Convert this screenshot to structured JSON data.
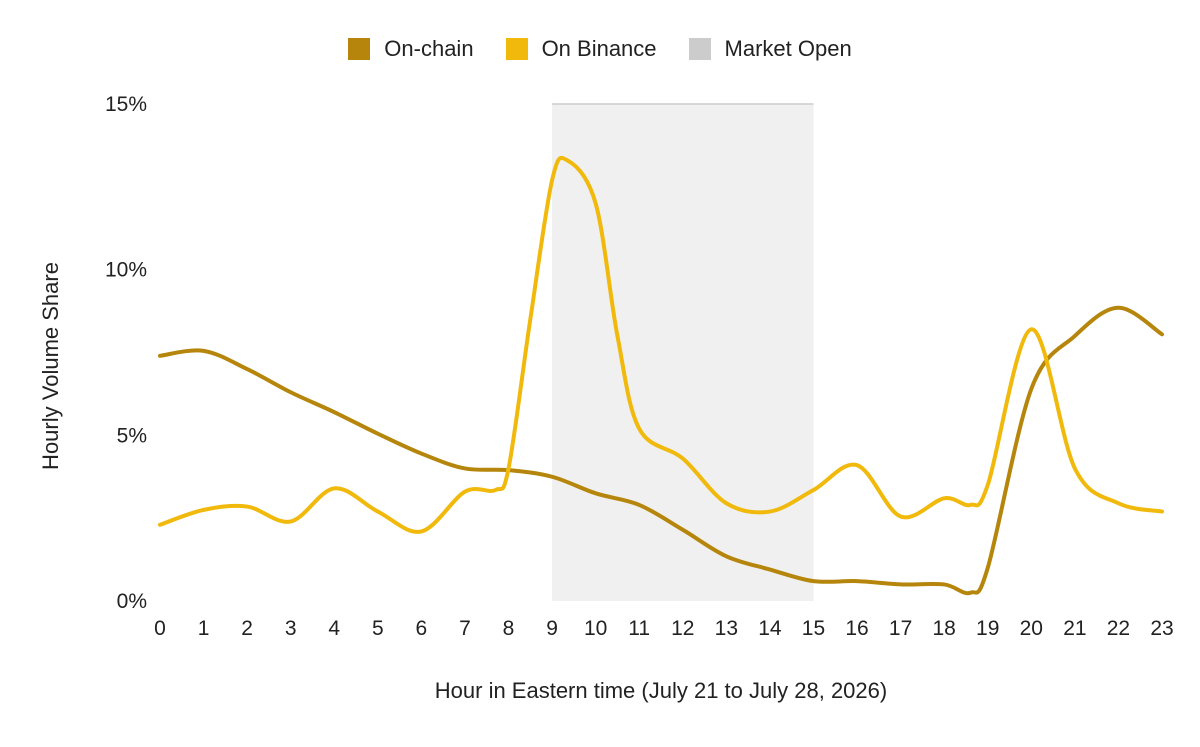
{
  "chart_data": {
    "type": "line",
    "title": "",
    "xlabel": "Hour in Eastern time (July 21 to July 28, 2026)",
    "ylabel": "Hourly Volume Share",
    "x": [
      0,
      1,
      2,
      3,
      4,
      5,
      6,
      7,
      8,
      9,
      10,
      11,
      12,
      13,
      14,
      15,
      16,
      17,
      18,
      19,
      20,
      21,
      22,
      23
    ],
    "xlim": [
      0,
      23
    ],
    "ylim": [
      0,
      15
    ],
    "y_ticks": [
      "0%",
      "5%",
      "10%",
      "15%"
    ],
    "y_tick_values": [
      0,
      5,
      10,
      15
    ],
    "legend_position": "top-center",
    "grid": false,
    "highlight_band": {
      "name": "Market Open",
      "x_start": 9,
      "x_end": 15,
      "color": "#f0f0f0",
      "legend_color": "#cccccc"
    },
    "series": [
      {
        "name": "On-chain",
        "color": "#b5860b",
        "x": [
          0,
          1,
          2,
          3,
          4,
          5,
          6,
          7,
          8,
          9,
          10,
          11,
          12,
          13,
          14,
          15,
          16,
          17,
          18,
          18.6,
          19,
          20,
          21,
          22,
          23
        ],
        "values": [
          7.4,
          7.55,
          7.0,
          6.3,
          5.7,
          5.05,
          4.45,
          4.0,
          3.95,
          3.75,
          3.25,
          2.9,
          2.15,
          1.35,
          0.95,
          0.6,
          0.6,
          0.5,
          0.5,
          0.25,
          1.0,
          6.4,
          8.0,
          8.85,
          8.05
        ]
      },
      {
        "name": "On Binance",
        "color": "#f0b90b",
        "x": [
          0,
          1,
          2,
          3,
          4,
          5,
          6,
          7,
          7.7,
          8,
          8.5,
          9,
          9.35,
          10,
          10.5,
          11,
          12,
          13,
          14,
          15,
          16,
          17,
          18,
          18.6,
          19,
          20,
          21,
          22,
          23
        ],
        "values": [
          2.3,
          2.75,
          2.85,
          2.4,
          3.4,
          2.7,
          2.1,
          3.3,
          3.35,
          4.0,
          8.5,
          12.7,
          13.3,
          12.0,
          8.0,
          5.2,
          4.3,
          2.95,
          2.7,
          3.35,
          4.1,
          2.55,
          3.1,
          2.9,
          3.5,
          8.2,
          4.0,
          2.95,
          2.7
        ]
      }
    ]
  }
}
